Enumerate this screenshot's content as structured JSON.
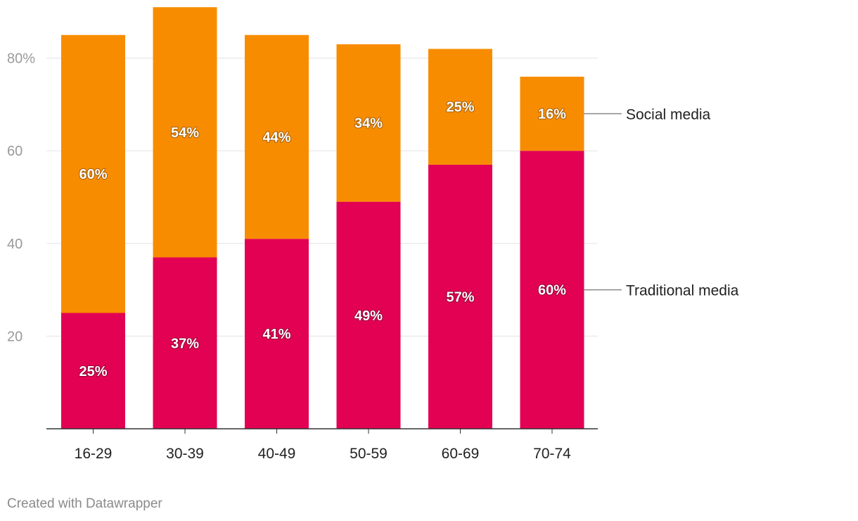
{
  "chart_data": {
    "type": "bar",
    "stacked": true,
    "categories": [
      "16-29",
      "30-39",
      "40-49",
      "50-59",
      "60-69",
      "70-74"
    ],
    "series": [
      {
        "name": "Traditional media",
        "color": "#e20152",
        "values": [
          25,
          37,
          41,
          49,
          57,
          60
        ],
        "labels": [
          "25%",
          "37%",
          "41%",
          "49%",
          "57%",
          "60%"
        ]
      },
      {
        "name": "Social media",
        "color": "#f88c00",
        "values": [
          60,
          54,
          44,
          34,
          25,
          16
        ],
        "labels": [
          "60%",
          "54%",
          "44%",
          "34%",
          "25%",
          "16%"
        ]
      }
    ],
    "yticks": [
      20,
      40,
      60,
      80
    ],
    "ytick_labels": [
      "20",
      "40",
      "60",
      "80%"
    ],
    "ylim": [
      0,
      91
    ],
    "grid": true,
    "legend": "right"
  },
  "footer": {
    "credit": "Created with Datawrapper"
  }
}
